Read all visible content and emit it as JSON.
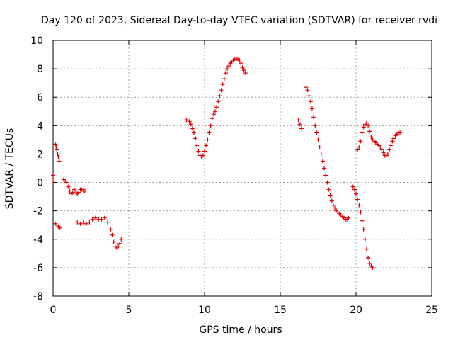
{
  "chart_data": {
    "type": "scatter",
    "title": "Day 120 of 2023, Sidereal Day-to-day VTEC variation (SDTVAR) for receiver rvdi",
    "xlabel": "GPS time / hours",
    "ylabel": "SDTVAR / TECUs",
    "xlim": [
      0,
      25
    ],
    "ylim": [
      -8,
      10
    ],
    "xticks": [
      0,
      5,
      10,
      15,
      20,
      25
    ],
    "yticks": [
      -8,
      -6,
      -4,
      -2,
      0,
      2,
      4,
      6,
      8,
      10
    ],
    "xtick_labels": [
      "0",
      "5",
      "10",
      "15",
      "20",
      "25"
    ],
    "ytick_labels": [
      "-8",
      "-6",
      "-4",
      "-2",
      "0",
      "2",
      "4",
      "6",
      "8",
      "10"
    ],
    "grid": true,
    "marker": "plus",
    "color": "#e00000",
    "series": [
      {
        "points": [
          [
            0.0,
            0.5
          ],
          [
            0.0,
            0.1
          ]
        ]
      },
      {
        "points": [
          [
            0.15,
            2.7
          ],
          [
            0.2,
            2.5
          ],
          [
            0.25,
            2.3
          ],
          [
            0.3,
            2.0
          ],
          [
            0.35,
            1.8
          ],
          [
            0.4,
            1.5
          ]
        ]
      },
      {
        "points": [
          [
            0.15,
            -2.9
          ],
          [
            0.25,
            -3.0
          ],
          [
            0.35,
            -3.1
          ],
          [
            0.45,
            -3.2
          ]
        ]
      },
      {
        "points": [
          [
            0.7,
            0.2
          ],
          [
            0.8,
            0.1
          ],
          [
            0.9,
            0.0
          ],
          [
            1.0,
            -0.3
          ],
          [
            1.1,
            -0.6
          ],
          [
            1.2,
            -0.8
          ],
          [
            1.3,
            -0.7
          ],
          [
            1.4,
            -0.5
          ],
          [
            1.5,
            -0.6
          ],
          [
            1.6,
            -0.8
          ],
          [
            1.7,
            -0.7
          ],
          [
            1.8,
            -0.5
          ],
          [
            1.9,
            -0.5
          ],
          [
            2.0,
            -0.6
          ],
          [
            2.1,
            -0.6
          ]
        ]
      },
      {
        "points": [
          [
            1.6,
            -2.8
          ],
          [
            1.8,
            -2.9
          ],
          [
            2.0,
            -2.8
          ],
          [
            2.2,
            -2.9
          ],
          [
            2.4,
            -2.8
          ],
          [
            2.6,
            -2.6
          ],
          [
            2.8,
            -2.5
          ],
          [
            3.0,
            -2.6
          ],
          [
            3.2,
            -2.6
          ],
          [
            3.4,
            -2.5
          ],
          [
            3.6,
            -2.8
          ],
          [
            3.8,
            -3.3
          ],
          [
            3.9,
            -3.7
          ],
          [
            4.0,
            -4.2
          ],
          [
            4.1,
            -4.5
          ],
          [
            4.2,
            -4.6
          ],
          [
            4.3,
            -4.5
          ],
          [
            4.4,
            -4.3
          ],
          [
            4.5,
            -4.0
          ]
        ]
      },
      {
        "points": [
          [
            8.8,
            4.4
          ],
          [
            8.9,
            4.4
          ],
          [
            9.0,
            4.3
          ],
          [
            9.1,
            4.1
          ],
          [
            9.2,
            3.8
          ],
          [
            9.3,
            3.5
          ],
          [
            9.4,
            3.1
          ],
          [
            9.5,
            2.6
          ],
          [
            9.6,
            2.2
          ],
          [
            9.7,
            1.9
          ],
          [
            9.8,
            1.8
          ],
          [
            9.9,
            1.9
          ],
          [
            10.0,
            2.2
          ],
          [
            10.1,
            2.6
          ],
          [
            10.2,
            3.0
          ],
          [
            10.3,
            3.5
          ],
          [
            10.4,
            4.0
          ],
          [
            10.5,
            4.5
          ],
          [
            10.6,
            4.8
          ],
          [
            10.7,
            5.0
          ],
          [
            10.8,
            5.3
          ],
          [
            10.9,
            5.7
          ],
          [
            11.0,
            6.1
          ],
          [
            11.1,
            6.5
          ],
          [
            11.2,
            6.9
          ],
          [
            11.3,
            7.3
          ],
          [
            11.4,
            7.7
          ],
          [
            11.5,
            8.0
          ],
          [
            11.6,
            8.2
          ],
          [
            11.7,
            8.4
          ],
          [
            11.8,
            8.5
          ],
          [
            11.9,
            8.6
          ],
          [
            12.0,
            8.7
          ],
          [
            12.1,
            8.7
          ],
          [
            12.2,
            8.7
          ],
          [
            12.3,
            8.6
          ],
          [
            12.4,
            8.4
          ],
          [
            12.5,
            8.1
          ],
          [
            12.6,
            7.9
          ],
          [
            12.7,
            7.7
          ]
        ]
      },
      {
        "points": [
          [
            16.2,
            4.4
          ],
          [
            16.3,
            4.1
          ],
          [
            16.4,
            3.8
          ]
        ]
      },
      {
        "points": [
          [
            16.7,
            6.7
          ],
          [
            16.8,
            6.5
          ],
          [
            16.9,
            6.1
          ],
          [
            17.0,
            5.7
          ],
          [
            17.1,
            5.2
          ],
          [
            17.2,
            4.6
          ],
          [
            17.3,
            4.0
          ],
          [
            17.4,
            3.5
          ],
          [
            17.5,
            3.0
          ],
          [
            17.6,
            2.5
          ],
          [
            17.7,
            2.0
          ],
          [
            17.8,
            1.5
          ],
          [
            17.9,
            1.0
          ],
          [
            18.0,
            0.5
          ],
          [
            18.1,
            0.0
          ],
          [
            18.2,
            -0.5
          ],
          [
            18.3,
            -0.9
          ],
          [
            18.4,
            -1.3
          ],
          [
            18.5,
            -1.6
          ],
          [
            18.6,
            -1.8
          ],
          [
            18.7,
            -2.0
          ],
          [
            18.8,
            -2.1
          ],
          [
            18.9,
            -2.2
          ],
          [
            19.0,
            -2.3
          ],
          [
            19.1,
            -2.4
          ],
          [
            19.2,
            -2.5
          ],
          [
            19.3,
            -2.6
          ],
          [
            19.4,
            -2.6
          ],
          [
            19.5,
            -2.5
          ]
        ]
      },
      {
        "points": [
          [
            19.8,
            -0.3
          ],
          [
            19.9,
            -0.5
          ],
          [
            20.0,
            -0.8
          ],
          [
            20.1,
            -1.2
          ],
          [
            20.2,
            -1.6
          ],
          [
            20.3,
            -2.1
          ],
          [
            20.4,
            -2.7
          ],
          [
            20.5,
            -3.3
          ],
          [
            20.6,
            -4.0
          ],
          [
            20.7,
            -4.7
          ],
          [
            20.8,
            -5.3
          ],
          [
            20.9,
            -5.7
          ],
          [
            21.0,
            -5.9
          ],
          [
            21.1,
            -6.0
          ]
        ]
      },
      {
        "points": [
          [
            20.1,
            2.3
          ],
          [
            20.2,
            2.5
          ],
          [
            20.3,
            2.9
          ],
          [
            20.4,
            3.5
          ],
          [
            20.5,
            3.9
          ],
          [
            20.6,
            4.1
          ],
          [
            20.7,
            4.2
          ],
          [
            20.8,
            4.0
          ],
          [
            20.9,
            3.6
          ],
          [
            21.0,
            3.2
          ],
          [
            21.1,
            3.0
          ],
          [
            21.2,
            2.9
          ],
          [
            21.3,
            2.8
          ],
          [
            21.4,
            2.7
          ],
          [
            21.5,
            2.6
          ],
          [
            21.6,
            2.5
          ],
          [
            21.7,
            2.3
          ],
          [
            21.8,
            2.1
          ],
          [
            21.9,
            1.9
          ],
          [
            22.0,
            1.9
          ],
          [
            22.1,
            2.0
          ],
          [
            22.2,
            2.3
          ],
          [
            22.3,
            2.6
          ],
          [
            22.4,
            2.9
          ],
          [
            22.5,
            3.1
          ],
          [
            22.6,
            3.3
          ],
          [
            22.7,
            3.4
          ],
          [
            22.8,
            3.5
          ],
          [
            22.9,
            3.5
          ]
        ]
      }
    ]
  }
}
